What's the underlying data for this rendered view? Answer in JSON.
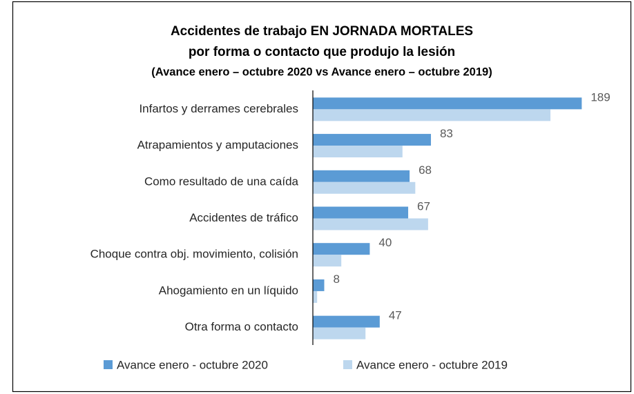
{
  "chart_data": {
    "type": "hbar",
    "title_lines": [
      "Accidentes de trabajo EN JORNADA MORTALES",
      "por forma o contacto que produjo la lesión"
    ],
    "subtitle": "(Avance enero – octubre 2020 vs Avance enero – octubre 2019)",
    "categories": [
      "Infartos y derrames cerebrales",
      "Atrapamientos y amputaciones",
      "Como resultado de una caída",
      "Accidentes de tráfico",
      "Choque contra obj. movimiento, colisión",
      "Ahogamiento en un líquido",
      "Otra forma o contacto"
    ],
    "series": [
      {
        "name": "Avance enero - octubre 2020",
        "color": "#5b9bd5",
        "values": [
          189,
          83,
          68,
          67,
          40,
          8,
          47
        ],
        "show_labels": true
      },
      {
        "name": "Avance enero - octubre 2019",
        "color": "#bdd7ee",
        "values": [
          167,
          63,
          72,
          81,
          20,
          3,
          37
        ],
        "show_labels": false
      }
    ],
    "xlim": [
      0,
      200
    ],
    "legend": "bottom"
  }
}
